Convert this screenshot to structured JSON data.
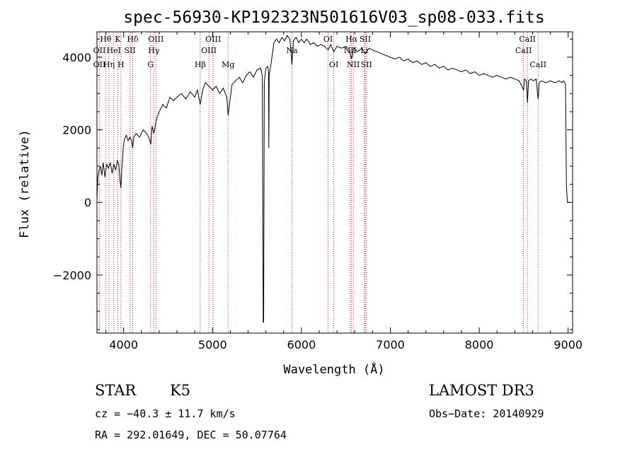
{
  "chart_data": {
    "type": "line",
    "title": "spec-56930-KP192323N501616V03_sp08-033.fits",
    "xlabel": "Wavelength (Å)",
    "ylabel": "Flux (relative)",
    "xlim": [
      3700,
      9050
    ],
    "ylim": [
      -3600,
      4700
    ],
    "xticks": [
      4000,
      5000,
      6000,
      7000,
      8000,
      9000
    ],
    "yticks": [
      -2000,
      0,
      2000,
      4000
    ],
    "grid": false,
    "series": [
      {
        "points": [
          [
            3700,
            100
          ],
          [
            3710,
            700
          ],
          [
            3725,
            900
          ],
          [
            3740,
            1000
          ],
          [
            3755,
            750
          ],
          [
            3770,
            1100
          ],
          [
            3790,
            700
          ],
          [
            3810,
            1050
          ],
          [
            3830,
            950
          ],
          [
            3850,
            1100
          ],
          [
            3870,
            800
          ],
          [
            3890,
            1050
          ],
          [
            3910,
            900
          ],
          [
            3930,
            1150
          ],
          [
            3945,
            1050
          ],
          [
            3960,
            600
          ],
          [
            3970,
            400
          ],
          [
            3980,
            950
          ],
          [
            3995,
            1500
          ],
          [
            4010,
            1750
          ],
          [
            4030,
            1850
          ],
          [
            4050,
            1700
          ],
          [
            4070,
            1800
          ],
          [
            4090,
            1700
          ],
          [
            4101,
            1500
          ],
          [
            4115,
            1800
          ],
          [
            4140,
            1900
          ],
          [
            4180,
            1800
          ],
          [
            4220,
            2000
          ],
          [
            4260,
            1900
          ],
          [
            4290,
            1750
          ],
          [
            4305,
            1600
          ],
          [
            4320,
            2100
          ],
          [
            4340,
            1900
          ],
          [
            4370,
            2300
          ],
          [
            4400,
            2500
          ],
          [
            4440,
            2700
          ],
          [
            4480,
            2600
          ],
          [
            4520,
            2900
          ],
          [
            4560,
            2800
          ],
          [
            4600,
            2900
          ],
          [
            4650,
            3000
          ],
          [
            4700,
            2850
          ],
          [
            4750,
            3050
          ],
          [
            4800,
            2900
          ],
          [
            4830,
            3100
          ],
          [
            4861,
            2700
          ],
          [
            4890,
            3100
          ],
          [
            4920,
            3300
          ],
          [
            4960,
            3200
          ],
          [
            5000,
            3100
          ],
          [
            5040,
            3200
          ],
          [
            5080,
            3000
          ],
          [
            5120,
            3150
          ],
          [
            5160,
            2900
          ],
          [
            5175,
            2400
          ],
          [
            5190,
            2700
          ],
          [
            5220,
            3250
          ],
          [
            5260,
            3350
          ],
          [
            5300,
            3450
          ],
          [
            5340,
            3300
          ],
          [
            5380,
            3500
          ],
          [
            5420,
            3600
          ],
          [
            5460,
            3450
          ],
          [
            5500,
            3650
          ],
          [
            5540,
            3700
          ],
          [
            5560,
            3500
          ],
          [
            5570,
            -3300
          ],
          [
            5575,
            -3300
          ],
          [
            5582,
            3300
          ],
          [
            5600,
            3700
          ],
          [
            5620,
            3750
          ],
          [
            5630,
            3600
          ],
          [
            5633,
            1500
          ],
          [
            5637,
            3500
          ],
          [
            5660,
            3850
          ],
          [
            5690,
            4400
          ],
          [
            5720,
            4500
          ],
          [
            5750,
            4400
          ],
          [
            5780,
            4550
          ],
          [
            5810,
            4450
          ],
          [
            5840,
            4600
          ],
          [
            5870,
            4500
          ],
          [
            5893,
            3800
          ],
          [
            5910,
            4450
          ],
          [
            5940,
            4550
          ],
          [
            5970,
            4400
          ],
          [
            6000,
            4500
          ],
          [
            6030,
            4400
          ],
          [
            6060,
            4500
          ],
          [
            6100,
            4350
          ],
          [
            6140,
            4400
          ],
          [
            6180,
            4300
          ],
          [
            6220,
            4350
          ],
          [
            6260,
            4300
          ],
          [
            6300,
            4200
          ],
          [
            6330,
            4350
          ],
          [
            6364,
            4150
          ],
          [
            6400,
            4300
          ],
          [
            6450,
            4250
          ],
          [
            6500,
            4300
          ],
          [
            6540,
            4200
          ],
          [
            6563,
            3950
          ],
          [
            6590,
            4250
          ],
          [
            6630,
            4150
          ],
          [
            6680,
            4250
          ],
          [
            6720,
            4100
          ],
          [
            6760,
            4250
          ],
          [
            6800,
            4200
          ],
          [
            6850,
            4150
          ],
          [
            6900,
            4100
          ],
          [
            6950,
            4050
          ],
          [
            7000,
            4000
          ],
          [
            7050,
            3950
          ],
          [
            7100,
            4000
          ],
          [
            7150,
            3900
          ],
          [
            7200,
            3950
          ],
          [
            7250,
            3850
          ],
          [
            7300,
            3900
          ],
          [
            7350,
            3800
          ],
          [
            7400,
            3850
          ],
          [
            7450,
            3750
          ],
          [
            7500,
            3800
          ],
          [
            7550,
            3700
          ],
          [
            7600,
            3750
          ],
          [
            7650,
            3650
          ],
          [
            7700,
            3700
          ],
          [
            7750,
            3650
          ],
          [
            7800,
            3600
          ],
          [
            7850,
            3650
          ],
          [
            7900,
            3550
          ],
          [
            7950,
            3600
          ],
          [
            8000,
            3500
          ],
          [
            8050,
            3550
          ],
          [
            8100,
            3500
          ],
          [
            8150,
            3450
          ],
          [
            8200,
            3500
          ],
          [
            8250,
            3450
          ],
          [
            8300,
            3400
          ],
          [
            8350,
            3450
          ],
          [
            8400,
            3400
          ],
          [
            8450,
            3350
          ],
          [
            8498,
            3100
          ],
          [
            8510,
            3400
          ],
          [
            8530,
            3350
          ],
          [
            8542,
            2750
          ],
          [
            8555,
            3350
          ],
          [
            8580,
            3400
          ],
          [
            8610,
            3350
          ],
          [
            8640,
            3400
          ],
          [
            8662,
            2850
          ],
          [
            8675,
            3300
          ],
          [
            8700,
            3350
          ],
          [
            8750,
            3300
          ],
          [
            8800,
            3350
          ],
          [
            8850,
            3300
          ],
          [
            8900,
            3350
          ],
          [
            8930,
            3300
          ],
          [
            8950,
            3350
          ],
          [
            8970,
            3250
          ],
          [
            8975,
            2000
          ],
          [
            8980,
            500
          ],
          [
            8990,
            50
          ],
          [
            9000,
            0
          ]
        ]
      }
    ],
    "lines": [
      {
        "wl": 3798,
        "label": "Hθ",
        "row": 0
      },
      {
        "wl": 3835,
        "label": "Hη",
        "row": 2
      },
      {
        "wl": 3728,
        "label": "OII",
        "row": 1
      },
      {
        "wl": 3728,
        "label": "OII",
        "row": 2
      },
      {
        "wl": 3889,
        "label": "HeI",
        "row": 1
      },
      {
        "wl": 3934,
        "label": "K",
        "row": 0
      },
      {
        "wl": 3969,
        "label": "H",
        "row": 2
      },
      {
        "wl": 4072,
        "label": "SII",
        "row": 1
      },
      {
        "wl": 4102,
        "label": "Hδ",
        "row": 0
      },
      {
        "wl": 4303,
        "label": "G",
        "row": 2
      },
      {
        "wl": 4340,
        "label": "Hγ",
        "row": 1
      },
      {
        "wl": 4363,
        "label": "OIII",
        "row": 0
      },
      {
        "wl": 4861,
        "label": "Hβ",
        "row": 2
      },
      {
        "wl": 4959,
        "label": "OIII",
        "row": 1
      },
      {
        "wl": 5007,
        "label": "OIII",
        "row": 0
      },
      {
        "wl": 5175,
        "label": "Mg",
        "row": 2
      },
      {
        "wl": 5893,
        "label": "Na",
        "row": 1
      },
      {
        "wl": 6300,
        "label": "OI",
        "row": 0
      },
      {
        "wl": 6364,
        "label": "OI",
        "row": 2
      },
      {
        "wl": 6548,
        "label": "NII",
        "row": 1
      },
      {
        "wl": 6563,
        "label": "Hα",
        "row": 0
      },
      {
        "wl": 6583,
        "label": "NII",
        "row": 2
      },
      {
        "wl": 6717,
        "label": "SII",
        "row": 0
      },
      {
        "wl": 6707,
        "label": "Li",
        "row": 1
      },
      {
        "wl": 6731,
        "label": "SII",
        "row": 2
      },
      {
        "wl": 8498,
        "label": "CaII",
        "row": 1
      },
      {
        "wl": 8542,
        "label": "CaII",
        "row": 0
      },
      {
        "wl": 8662,
        "label": "CaII",
        "row": 2
      }
    ]
  },
  "info": {
    "object_class": "STAR",
    "subclass": "K5",
    "survey": "LAMOST DR3",
    "redshift": "cz = −40.3 ± 11.7 km/s",
    "obs_date": "Obs−Date: 20140929",
    "coords": "RA = 292.01649, DEC =  50.07764"
  }
}
